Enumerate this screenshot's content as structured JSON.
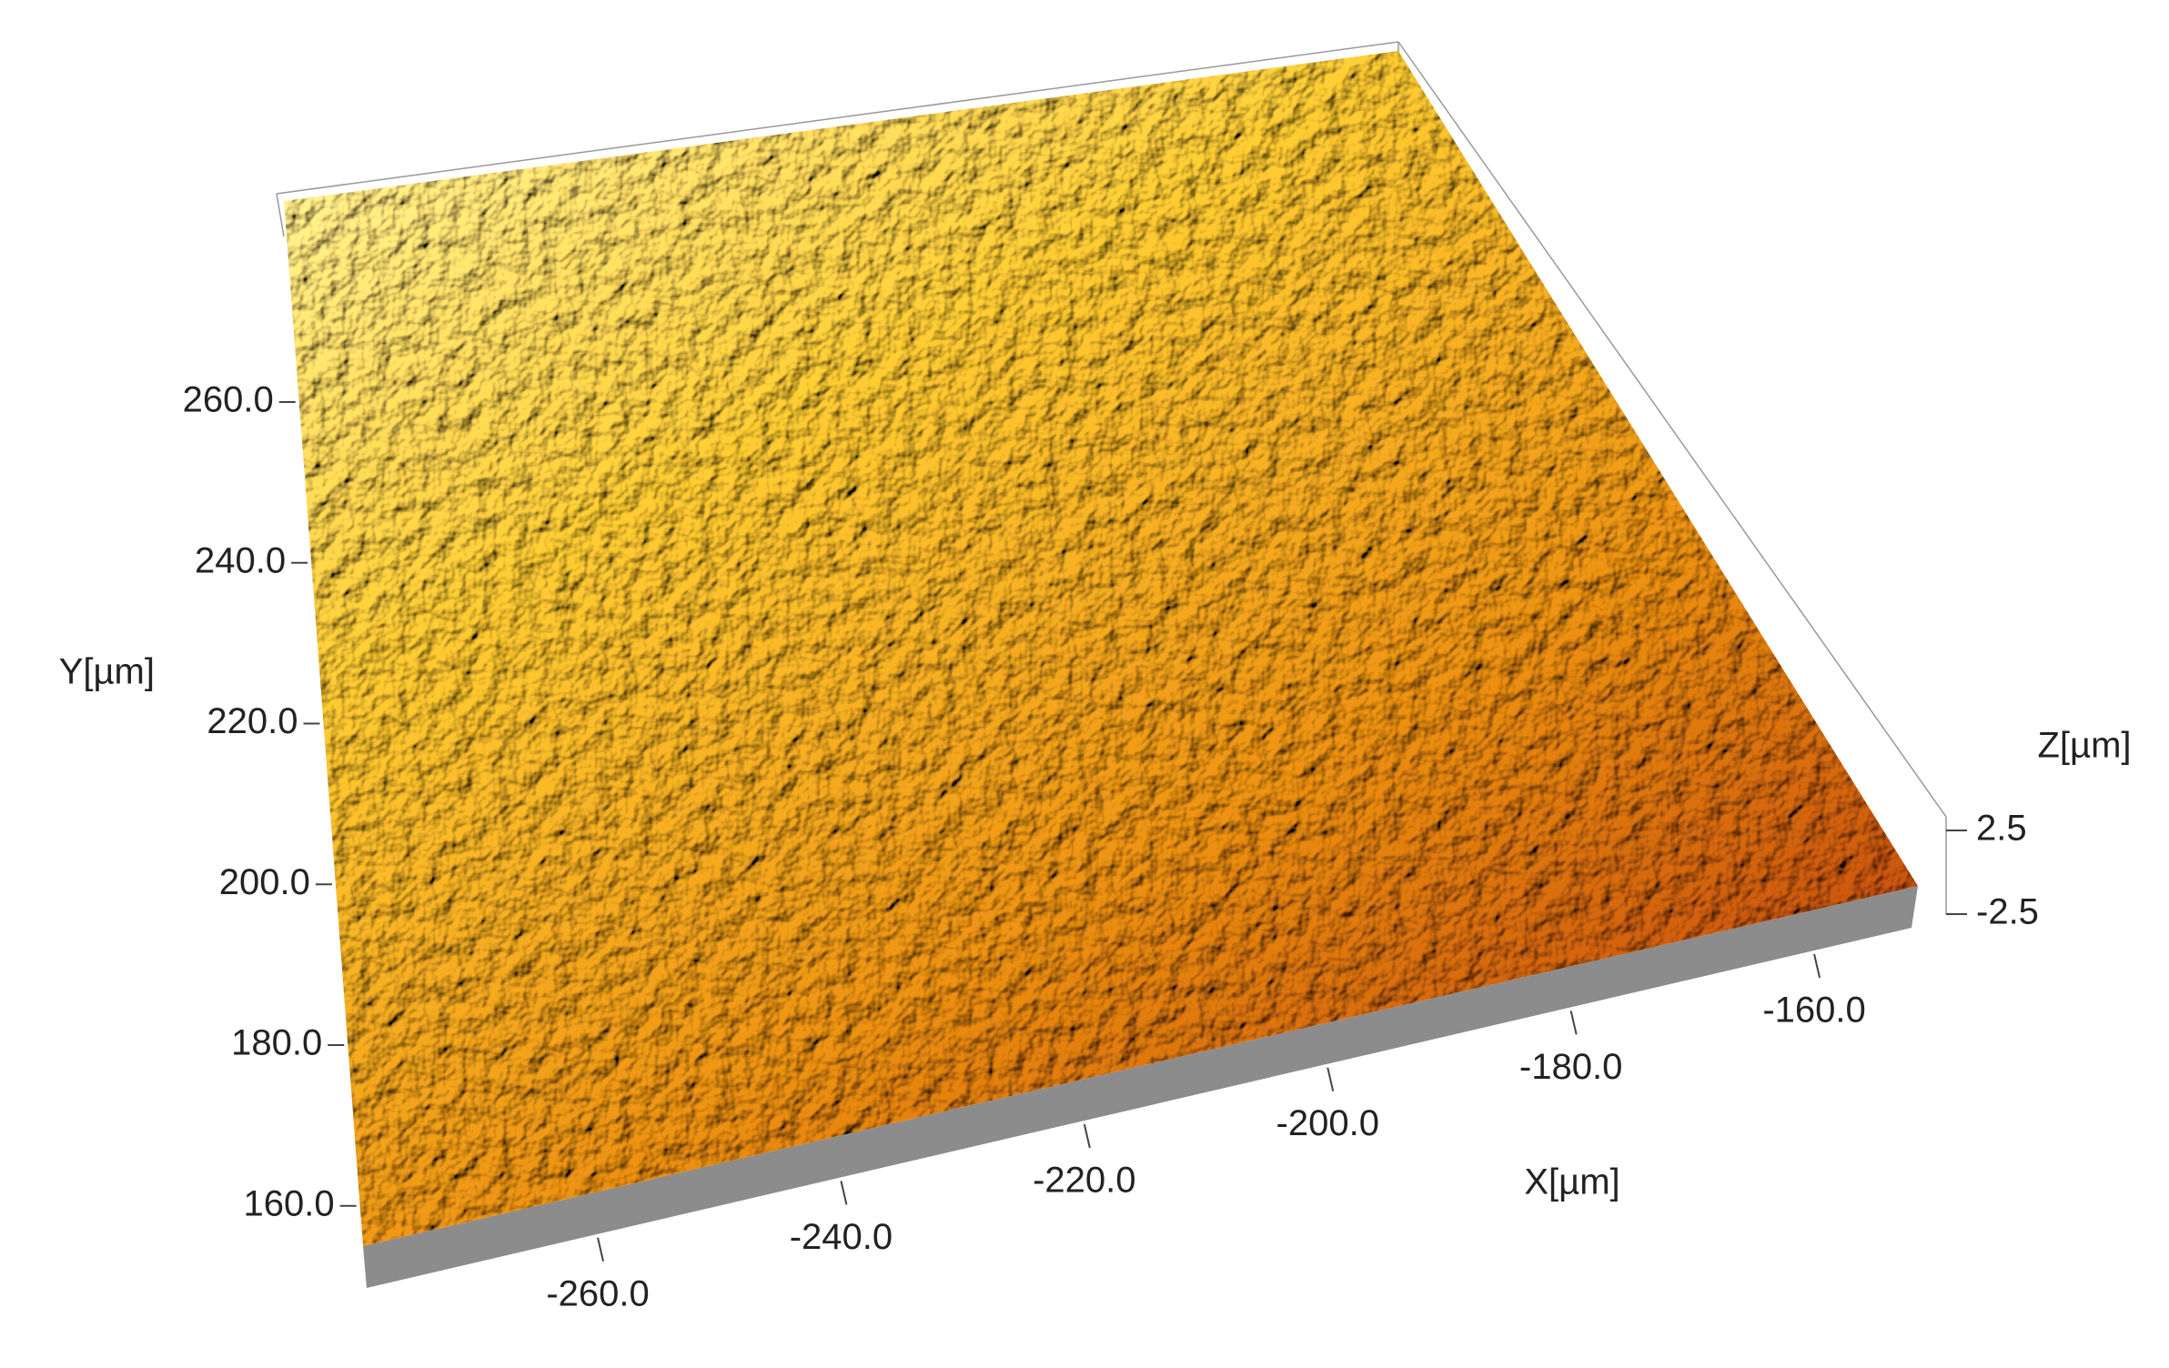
{
  "chart_data": {
    "type": "surface3d",
    "x_label": "X[µm]",
    "y_label": "Y[µm]",
    "z_label": "Z[µm]",
    "xlim": [
      -279,
      -152
    ],
    "xticks": [
      {
        "value": -260,
        "label": "-260.0"
      },
      {
        "value": -240,
        "label": "-240.0"
      },
      {
        "value": -220,
        "label": "-220.0"
      },
      {
        "value": -200,
        "label": "-200.0"
      },
      {
        "value": -180,
        "label": "-180.0"
      },
      {
        "value": -160,
        "label": "-160.0"
      }
    ],
    "ylim": [
      155,
      285
    ],
    "yticks": [
      {
        "value": 160,
        "label": "160.0"
      },
      {
        "value": 180,
        "label": "180.0"
      },
      {
        "value": 200,
        "label": "200.0"
      },
      {
        "value": 220,
        "label": "220.0"
      },
      {
        "value": 240,
        "label": "240.0"
      },
      {
        "value": 260,
        "label": "260.0"
      }
    ],
    "zlim": [
      -2.5,
      2.5
    ],
    "zticks": [
      -2.5,
      2.5
    ],
    "colors": [
      "#fff2a0",
      "#f2c230",
      "#e08a10",
      "#b43a0a"
    ],
    "base_color": "#8c8c8c"
  }
}
